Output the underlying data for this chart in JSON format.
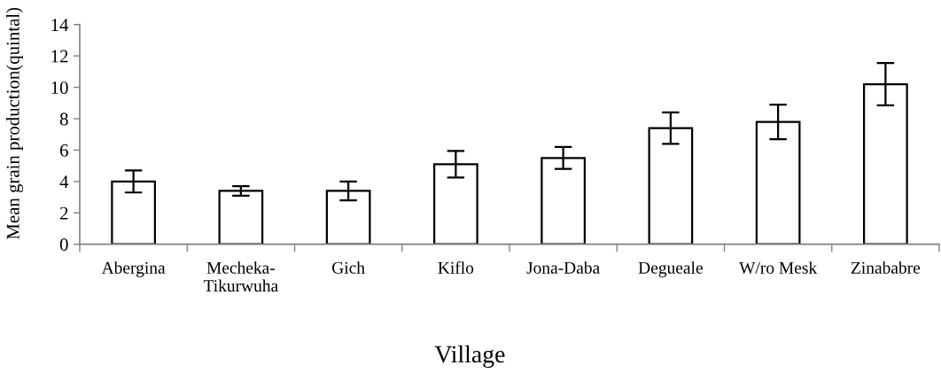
{
  "chart_data": {
    "type": "bar",
    "xlabel": "Village",
    "ylabel": "Mean grain production(quintal)",
    "categories": [
      "Abergina",
      "Mecheka-\nTikurwuha",
      "Gich",
      "Kiflo",
      "Jona-Daba",
      "Degueale",
      "W/ro Mesk",
      "Zinababre"
    ],
    "values": [
      4.0,
      3.4,
      3.4,
      5.1,
      5.5,
      7.4,
      7.8,
      10.2
    ],
    "errors": [
      0.7,
      0.3,
      0.6,
      0.85,
      0.7,
      1.0,
      1.1,
      1.35
    ],
    "color": "#ffffff",
    "ylim": [
      0,
      14
    ],
    "yticks": [
      0,
      2,
      4,
      6,
      8,
      10,
      12,
      14
    ]
  }
}
